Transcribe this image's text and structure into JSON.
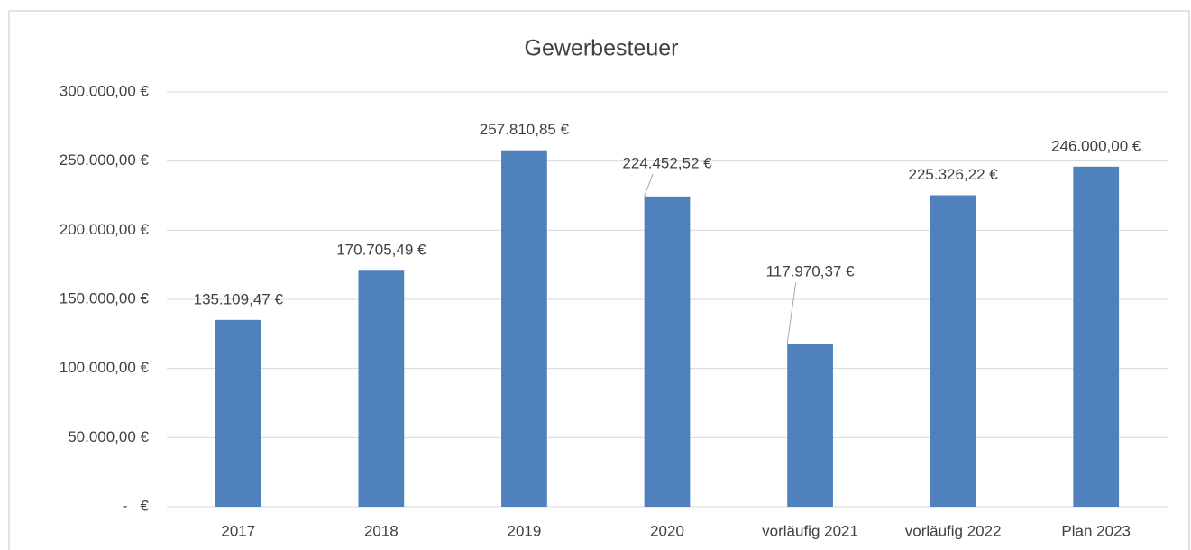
{
  "chart_data": {
    "type": "bar",
    "title": "Gewerbesteuer",
    "categories": [
      "2017",
      "2018",
      "2019",
      "2020",
      "vorläufig 2021",
      "vorläufig 2022",
      "Plan 2023"
    ],
    "values": [
      135109.47,
      170705.49,
      257810.85,
      224452.52,
      117970.37,
      225326.22,
      246000.0
    ],
    "value_labels": [
      "135.109,47 €",
      "170.705,49 €",
      "257.810,85 €",
      "224.452,52 €",
      "117.970,37 €",
      "225.326,22 €",
      "246.000,00 €"
    ],
    "color": "#4f81bd",
    "ylim": [
      0,
      300000
    ],
    "yticks": [
      {
        "value": 0,
        "label": "-   €"
      },
      {
        "value": 50000,
        "label": "50.000,00 €"
      },
      {
        "value": 100000,
        "label": "100.000,00 €"
      },
      {
        "value": 150000,
        "label": "150.000,00 €"
      },
      {
        "value": 200000,
        "label": "200.000,00 €"
      },
      {
        "value": 250000,
        "label": "250.000,00 €"
      },
      {
        "value": 300000,
        "label": "300.000,00 €"
      }
    ],
    "grid": true
  }
}
